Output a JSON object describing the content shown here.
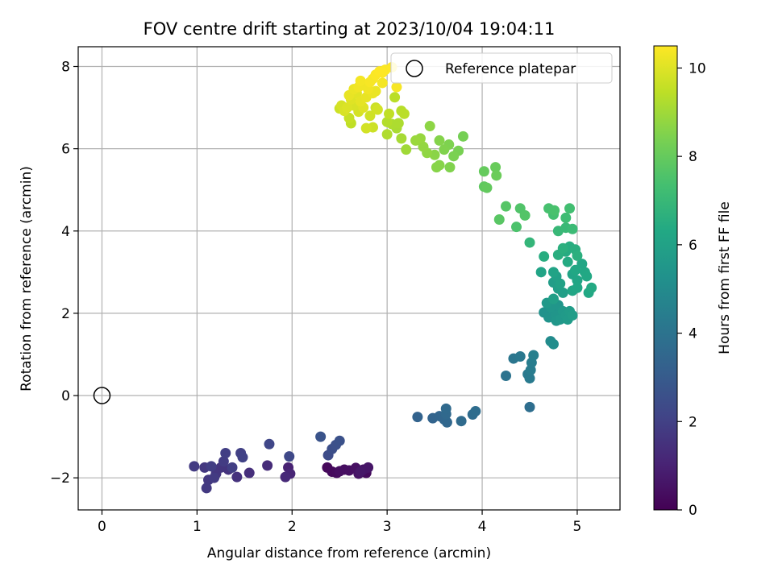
{
  "chart_data": {
    "type": "scatter",
    "title": "FOV centre drift starting at 2023/10/04 19:04:11",
    "xlabel": "Angular distance from reference (arcmin)",
    "ylabel": "Rotation from reference (arcmin)",
    "xlim": [
      -0.25,
      5.45
    ],
    "ylim": [
      -2.78,
      8.48
    ],
    "xticks": [
      0,
      1,
      2,
      3,
      4,
      5
    ],
    "yticks": [
      -2,
      0,
      2,
      4,
      6,
      8
    ],
    "grid": true,
    "legend": {
      "placement": "top-right",
      "entries": [
        "Reference platepar"
      ]
    },
    "reference_point": {
      "x": 0,
      "y": 0
    },
    "colorbar": {
      "label": "Hours from first FF file",
      "colormap": "viridis",
      "range": [
        0,
        10.5
      ],
      "ticks": [
        0,
        2,
        4,
        6,
        8,
        10
      ]
    },
    "points": [
      {
        "x": 2.37,
        "y": -1.75,
        "c": 0.2
      },
      {
        "x": 2.42,
        "y": -1.85,
        "c": 0.25
      },
      {
        "x": 2.47,
        "y": -1.88,
        "c": 0.3
      },
      {
        "x": 2.55,
        "y": -1.8,
        "c": 0.35
      },
      {
        "x": 2.6,
        "y": -1.82,
        "c": 0.4
      },
      {
        "x": 2.67,
        "y": -1.76,
        "c": 0.45
      },
      {
        "x": 2.7,
        "y": -1.9,
        "c": 0.5
      },
      {
        "x": 2.75,
        "y": -1.8,
        "c": 0.55
      },
      {
        "x": 2.8,
        "y": -1.75,
        "c": 0.6
      },
      {
        "x": 2.72,
        "y": -1.85,
        "c": 0.65
      },
      {
        "x": 2.78,
        "y": -1.88,
        "c": 0.3
      },
      {
        "x": 2.5,
        "y": -1.84,
        "c": 0.4
      },
      {
        "x": 1.96,
        "y": -1.75,
        "c": 1.0
      },
      {
        "x": 1.98,
        "y": -1.9,
        "c": 1.1
      },
      {
        "x": 1.93,
        "y": -1.98,
        "c": 1.2
      },
      {
        "x": 1.74,
        "y": -1.7,
        "c": 1.3
      },
      {
        "x": 1.55,
        "y": -1.88,
        "c": 1.4
      },
      {
        "x": 1.42,
        "y": -1.98,
        "c": 1.5
      },
      {
        "x": 1.33,
        "y": -1.8,
        "c": 1.55
      },
      {
        "x": 1.25,
        "y": -1.75,
        "c": 1.6
      },
      {
        "x": 1.2,
        "y": -1.9,
        "c": 1.65
      },
      {
        "x": 1.12,
        "y": -2.05,
        "c": 1.7
      },
      {
        "x": 1.1,
        "y": -2.25,
        "c": 1.75
      },
      {
        "x": 1.18,
        "y": -2.0,
        "c": 1.8
      },
      {
        "x": 1.28,
        "y": -1.6,
        "c": 1.85
      },
      {
        "x": 1.3,
        "y": -1.4,
        "c": 1.9
      },
      {
        "x": 1.37,
        "y": -1.75,
        "c": 1.95
      },
      {
        "x": 1.08,
        "y": -1.75,
        "c": 1.7
      },
      {
        "x": 0.97,
        "y": -1.72,
        "c": 1.8
      },
      {
        "x": 1.15,
        "y": -1.72,
        "c": 1.9
      },
      {
        "x": 1.46,
        "y": -1.4,
        "c": 2.0
      },
      {
        "x": 1.48,
        "y": -1.5,
        "c": 2.05
      },
      {
        "x": 1.76,
        "y": -1.18,
        "c": 2.2
      },
      {
        "x": 1.97,
        "y": -1.48,
        "c": 2.25
      },
      {
        "x": 2.38,
        "y": -1.45,
        "c": 2.4
      },
      {
        "x": 2.42,
        "y": -1.3,
        "c": 2.5
      },
      {
        "x": 2.46,
        "y": -1.2,
        "c": 2.55
      },
      {
        "x": 2.5,
        "y": -1.1,
        "c": 2.6
      },
      {
        "x": 2.3,
        "y": -1.0,
        "c": 2.7
      },
      {
        "x": 3.32,
        "y": -0.52,
        "c": 3.3
      },
      {
        "x": 3.48,
        "y": -0.55,
        "c": 3.35
      },
      {
        "x": 3.55,
        "y": -0.5,
        "c": 3.4
      },
      {
        "x": 3.6,
        "y": -0.58,
        "c": 3.45
      },
      {
        "x": 3.63,
        "y": -0.65,
        "c": 3.5
      },
      {
        "x": 3.62,
        "y": -0.45,
        "c": 3.55
      },
      {
        "x": 3.62,
        "y": -0.32,
        "c": 3.6
      },
      {
        "x": 3.78,
        "y": -0.62,
        "c": 3.65
      },
      {
        "x": 3.9,
        "y": -0.46,
        "c": 3.7
      },
      {
        "x": 3.93,
        "y": -0.38,
        "c": 3.75
      },
      {
        "x": 4.5,
        "y": -0.28,
        "c": 3.8
      },
      {
        "x": 4.25,
        "y": 0.48,
        "c": 4.0
      },
      {
        "x": 4.33,
        "y": 0.9,
        "c": 4.1
      },
      {
        "x": 4.4,
        "y": 0.95,
        "c": 4.2
      },
      {
        "x": 4.48,
        "y": 0.52,
        "c": 4.25
      },
      {
        "x": 4.5,
        "y": 0.42,
        "c": 4.3
      },
      {
        "x": 4.51,
        "y": 0.62,
        "c": 4.35
      },
      {
        "x": 4.52,
        "y": 0.8,
        "c": 4.4
      },
      {
        "x": 4.54,
        "y": 0.98,
        "c": 4.5
      },
      {
        "x": 4.72,
        "y": 1.32,
        "c": 5.0
      },
      {
        "x": 4.75,
        "y": 1.25,
        "c": 5.1
      },
      {
        "x": 4.65,
        "y": 2.02,
        "c": 5.3
      },
      {
        "x": 4.7,
        "y": 1.9,
        "c": 5.35
      },
      {
        "x": 4.75,
        "y": 2.1,
        "c": 5.4
      },
      {
        "x": 4.78,
        "y": 1.95,
        "c": 5.45
      },
      {
        "x": 4.8,
        "y": 2.2,
        "c": 5.5
      },
      {
        "x": 4.82,
        "y": 1.85,
        "c": 5.55
      },
      {
        "x": 4.85,
        "y": 2.05,
        "c": 5.6
      },
      {
        "x": 4.88,
        "y": 1.95,
        "c": 5.65
      },
      {
        "x": 4.9,
        "y": 1.85,
        "c": 5.7
      },
      {
        "x": 4.92,
        "y": 2.05,
        "c": 5.75
      },
      {
        "x": 4.95,
        "y": 1.95,
        "c": 5.8
      },
      {
        "x": 4.72,
        "y": 2.15,
        "c": 5.5
      },
      {
        "x": 4.68,
        "y": 2.25,
        "c": 5.6
      },
      {
        "x": 4.78,
        "y": 1.82,
        "c": 5.5
      },
      {
        "x": 4.75,
        "y": 2.75,
        "c": 5.8
      },
      {
        "x": 4.8,
        "y": 2.6,
        "c": 5.85
      },
      {
        "x": 4.85,
        "y": 2.5,
        "c": 5.9
      },
      {
        "x": 4.78,
        "y": 2.9,
        "c": 5.95
      },
      {
        "x": 4.82,
        "y": 2.72,
        "c": 6.0
      },
      {
        "x": 4.75,
        "y": 3.0,
        "c": 6.05
      },
      {
        "x": 4.62,
        "y": 3.0,
        "c": 6.1
      },
      {
        "x": 4.75,
        "y": 2.35,
        "c": 5.9
      },
      {
        "x": 4.95,
        "y": 2.95,
        "c": 6.1
      },
      {
        "x": 5.0,
        "y": 2.8,
        "c": 6.15
      },
      {
        "x": 5.05,
        "y": 3.2,
        "c": 6.2
      },
      {
        "x": 5.08,
        "y": 3.0,
        "c": 6.25
      },
      {
        "x": 5.12,
        "y": 2.5,
        "c": 6.3
      },
      {
        "x": 5.15,
        "y": 2.62,
        "c": 6.35
      },
      {
        "x": 5.1,
        "y": 2.9,
        "c": 6.3
      },
      {
        "x": 5.0,
        "y": 2.62,
        "c": 6.2
      },
      {
        "x": 4.98,
        "y": 3.05,
        "c": 6.25
      },
      {
        "x": 4.95,
        "y": 2.55,
        "c": 6.15
      },
      {
        "x": 4.9,
        "y": 3.25,
        "c": 6.4
      },
      {
        "x": 4.88,
        "y": 3.5,
        "c": 6.45
      },
      {
        "x": 4.92,
        "y": 3.62,
        "c": 6.5
      },
      {
        "x": 4.98,
        "y": 3.55,
        "c": 6.55
      },
      {
        "x": 5.0,
        "y": 3.4,
        "c": 6.6
      },
      {
        "x": 4.85,
        "y": 3.58,
        "c": 6.6
      },
      {
        "x": 4.8,
        "y": 3.42,
        "c": 6.55
      },
      {
        "x": 4.65,
        "y": 3.38,
        "c": 6.5
      },
      {
        "x": 4.5,
        "y": 3.72,
        "c": 6.9
      },
      {
        "x": 4.8,
        "y": 4.0,
        "c": 7.0
      },
      {
        "x": 4.88,
        "y": 4.08,
        "c": 7.05
      },
      {
        "x": 4.95,
        "y": 4.05,
        "c": 7.1
      },
      {
        "x": 4.88,
        "y": 4.32,
        "c": 7.2
      },
      {
        "x": 4.92,
        "y": 4.55,
        "c": 7.3
      },
      {
        "x": 4.75,
        "y": 4.4,
        "c": 7.35
      },
      {
        "x": 4.7,
        "y": 4.55,
        "c": 7.4
      },
      {
        "x": 4.76,
        "y": 4.5,
        "c": 7.45
      },
      {
        "x": 4.4,
        "y": 4.55,
        "c": 7.6
      },
      {
        "x": 4.45,
        "y": 4.38,
        "c": 7.65
      },
      {
        "x": 4.36,
        "y": 4.1,
        "c": 7.5
      },
      {
        "x": 4.25,
        "y": 4.6,
        "c": 7.7
      },
      {
        "x": 4.18,
        "y": 4.28,
        "c": 7.75
      },
      {
        "x": 4.02,
        "y": 5.08,
        "c": 7.9
      },
      {
        "x": 4.05,
        "y": 5.05,
        "c": 7.95
      },
      {
        "x": 4.02,
        "y": 5.45,
        "c": 8.0
      },
      {
        "x": 4.14,
        "y": 5.55,
        "c": 8.05
      },
      {
        "x": 4.15,
        "y": 5.35,
        "c": 8.1
      },
      {
        "x": 3.8,
        "y": 6.3,
        "c": 8.3
      },
      {
        "x": 3.75,
        "y": 5.95,
        "c": 8.35
      },
      {
        "x": 3.7,
        "y": 5.82,
        "c": 8.4
      },
      {
        "x": 3.65,
        "y": 6.1,
        "c": 8.45
      },
      {
        "x": 3.6,
        "y": 5.98,
        "c": 8.5
      },
      {
        "x": 3.55,
        "y": 6.2,
        "c": 8.55
      },
      {
        "x": 3.52,
        "y": 5.55,
        "c": 8.6
      },
      {
        "x": 3.5,
        "y": 5.85,
        "c": 8.65
      },
      {
        "x": 3.45,
        "y": 6.55,
        "c": 8.7
      },
      {
        "x": 3.42,
        "y": 5.9,
        "c": 8.75
      },
      {
        "x": 3.38,
        "y": 6.05,
        "c": 8.8
      },
      {
        "x": 3.35,
        "y": 6.25,
        "c": 8.85
      },
      {
        "x": 3.3,
        "y": 6.2,
        "c": 8.9
      },
      {
        "x": 3.66,
        "y": 5.55,
        "c": 8.5
      },
      {
        "x": 3.55,
        "y": 5.6,
        "c": 8.6
      },
      {
        "x": 3.2,
        "y": 5.98,
        "c": 9.0
      },
      {
        "x": 3.15,
        "y": 6.25,
        "c": 9.1
      },
      {
        "x": 3.1,
        "y": 6.5,
        "c": 9.15
      },
      {
        "x": 3.05,
        "y": 6.6,
        "c": 9.2
      },
      {
        "x": 3.0,
        "y": 6.35,
        "c": 9.25
      },
      {
        "x": 3.0,
        "y": 6.65,
        "c": 9.3
      },
      {
        "x": 3.12,
        "y": 6.62,
        "c": 9.2
      },
      {
        "x": 3.18,
        "y": 6.85,
        "c": 9.4
      },
      {
        "x": 3.15,
        "y": 6.92,
        "c": 9.35
      },
      {
        "x": 3.08,
        "y": 7.25,
        "c": 9.4
      },
      {
        "x": 3.02,
        "y": 6.85,
        "c": 9.5
      },
      {
        "x": 2.88,
        "y": 7.0,
        "c": 9.7
      },
      {
        "x": 2.82,
        "y": 6.8,
        "c": 9.75
      },
      {
        "x": 2.78,
        "y": 6.5,
        "c": 9.8
      },
      {
        "x": 2.85,
        "y": 6.52,
        "c": 9.7
      },
      {
        "x": 2.9,
        "y": 6.95,
        "c": 9.8
      },
      {
        "x": 2.7,
        "y": 6.9,
        "c": 9.85
      },
      {
        "x": 2.62,
        "y": 6.62,
        "c": 9.5
      },
      {
        "x": 2.65,
        "y": 7.05,
        "c": 9.9
      },
      {
        "x": 2.58,
        "y": 7.0,
        "c": 9.95
      },
      {
        "x": 2.55,
        "y": 6.92,
        "c": 9.9
      },
      {
        "x": 2.52,
        "y": 7.05,
        "c": 9.85
      },
      {
        "x": 2.62,
        "y": 7.2,
        "c": 10.0
      },
      {
        "x": 2.68,
        "y": 7.35,
        "c": 10.05
      },
      {
        "x": 2.72,
        "y": 7.15,
        "c": 10.1
      },
      {
        "x": 2.78,
        "y": 7.25,
        "c": 10.15
      },
      {
        "x": 2.85,
        "y": 7.35,
        "c": 10.2
      },
      {
        "x": 2.75,
        "y": 7.55,
        "c": 10.25
      },
      {
        "x": 2.8,
        "y": 7.45,
        "c": 10.3
      },
      {
        "x": 2.72,
        "y": 7.65,
        "c": 10.35
      },
      {
        "x": 2.7,
        "y": 7.5,
        "c": 10.3
      },
      {
        "x": 2.65,
        "y": 7.45,
        "c": 10.2
      },
      {
        "x": 2.6,
        "y": 7.3,
        "c": 10.15
      },
      {
        "x": 2.75,
        "y": 7.0,
        "c": 10.0
      },
      {
        "x": 2.85,
        "y": 7.7,
        "c": 10.4
      },
      {
        "x": 2.88,
        "y": 7.8,
        "c": 10.45
      },
      {
        "x": 2.92,
        "y": 7.88,
        "c": 10.5
      },
      {
        "x": 2.95,
        "y": 7.85,
        "c": 10.5
      },
      {
        "x": 2.98,
        "y": 7.92,
        "c": 10.45
      },
      {
        "x": 3.05,
        "y": 7.98,
        "c": 10.5
      },
      {
        "x": 3.1,
        "y": 7.5,
        "c": 10.4
      },
      {
        "x": 2.82,
        "y": 7.62,
        "c": 10.4
      },
      {
        "x": 2.95,
        "y": 7.6,
        "c": 10.35
      },
      {
        "x": 2.88,
        "y": 7.4,
        "c": 10.2
      },
      {
        "x": 2.6,
        "y": 6.75,
        "c": 9.6
      },
      {
        "x": 2.5,
        "y": 6.98,
        "c": 9.7
      }
    ]
  }
}
